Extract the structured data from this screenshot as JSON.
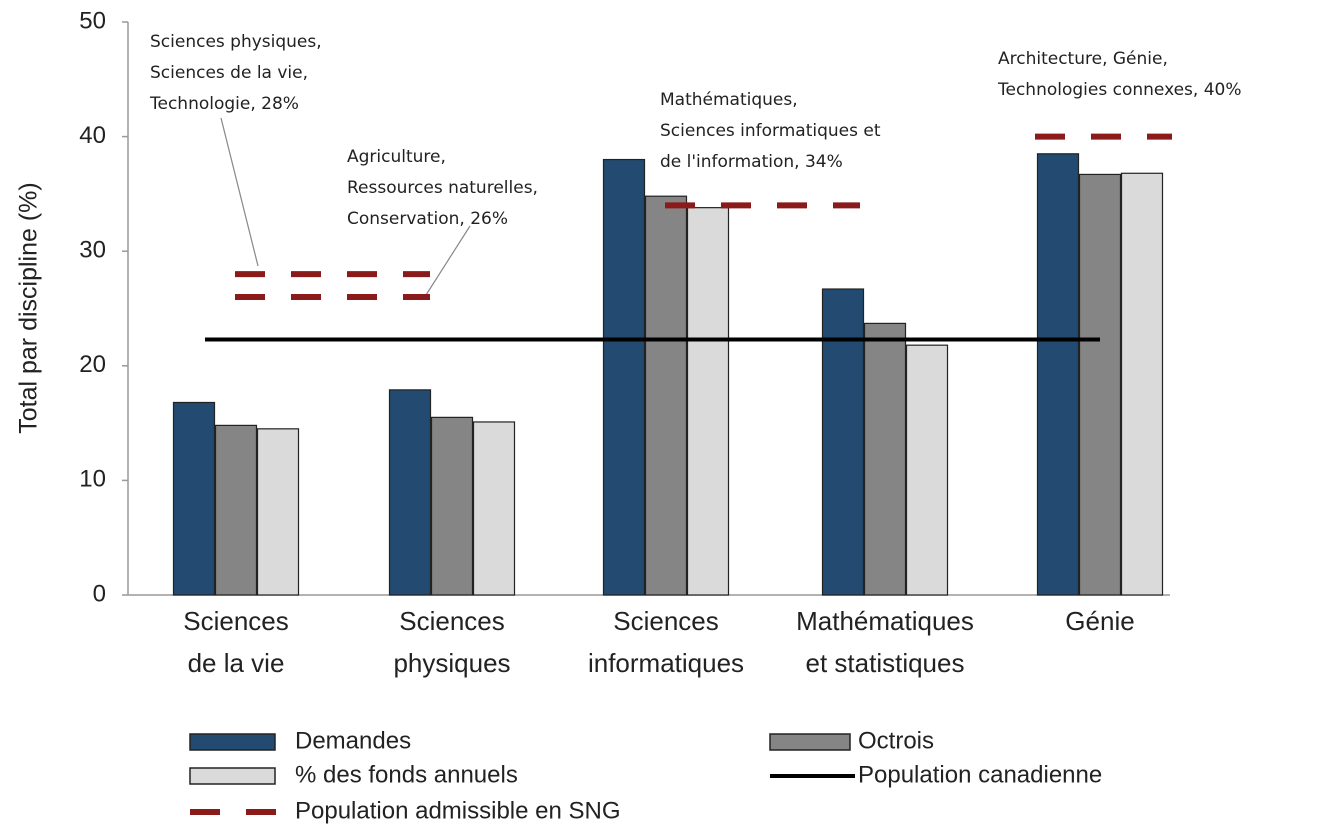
{
  "chart_data": {
    "type": "bar",
    "y_label": "Total par discipline (%)",
    "categories": [
      [
        "Sciences",
        "de la vie"
      ],
      [
        "Sciences",
        "physiques"
      ],
      [
        "Sciences",
        "informatiques"
      ],
      [
        "Mathématiques",
        "et statistiques"
      ],
      [
        "Génie"
      ]
    ],
    "series": [
      {
        "name": "Demandes",
        "color": "#234a70",
        "values": [
          16.8,
          17.9,
          38.0,
          26.7,
          38.5
        ]
      },
      {
        "name": "Octrois",
        "color": "#858585",
        "values": [
          14.8,
          15.5,
          34.8,
          23.7,
          36.7
        ]
      },
      {
        "name": "% des fonds annuels",
        "color": "#dadada",
        "values": [
          14.5,
          15.1,
          33.8,
          21.8,
          36.8
        ]
      }
    ],
    "population_line": {
      "name": "Population canadienne",
      "color": "#000000",
      "value": 22.3
    },
    "sng": {
      "name": "Population admissible en SNG",
      "color": "#8b1a1a",
      "lines": [
        {
          "value": 28,
          "lines": [
            "Sciences physiques,",
            "Sciences de la vie,",
            "Technologie, 28%"
          ]
        },
        {
          "value": 26,
          "lines": [
            "Agriculture,",
            "Ressources naturelles,",
            "Conservation, 26%"
          ]
        },
        {
          "value": 34,
          "lines": [
            "Mathématiques,",
            "Sciences informatiques et",
            "de l'information, 34%"
          ]
        },
        {
          "value": 40,
          "lines": [
            "Architecture, Génie,",
            "Technologies connexes, 40%"
          ]
        }
      ]
    },
    "ylim": [
      0,
      50
    ],
    "yticks": [
      0,
      10,
      20,
      30,
      40,
      50
    ]
  }
}
